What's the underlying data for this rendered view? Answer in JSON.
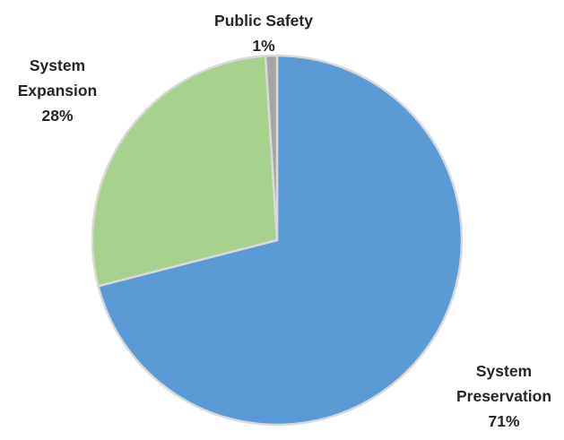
{
  "chart_data": {
    "type": "pie",
    "title": "",
    "slices": [
      {
        "label_lines": [
          "System",
          "Preservation"
        ],
        "percent_label": "71%",
        "value": 71,
        "color": "#5b9bd5"
      },
      {
        "label_lines": [
          "System",
          "Expansion"
        ],
        "percent_label": "28%",
        "value": 28,
        "color": "#a9d18e"
      },
      {
        "label_lines": [
          "Public Safety"
        ],
        "percent_label": "1%",
        "value": 1,
        "color": "#a5a5a5"
      }
    ],
    "start_angle_deg": 0,
    "direction": "clockwise",
    "slice_border_color": "#d9d9d9",
    "label_color": "#262626"
  }
}
